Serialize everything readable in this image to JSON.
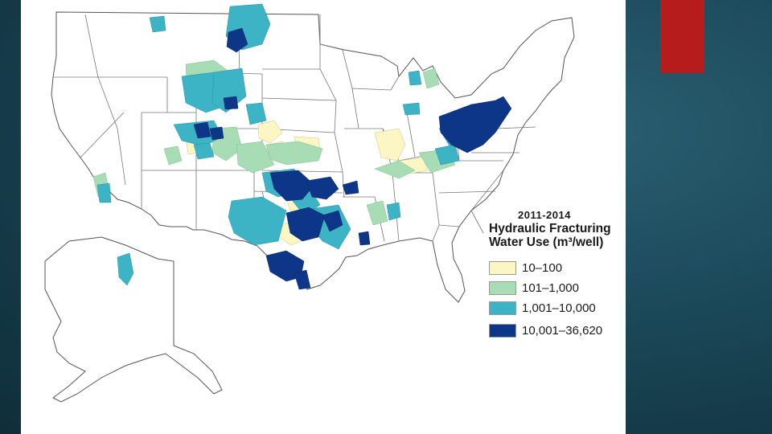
{
  "legend": {
    "year": "2011-2014",
    "title_line1": "Hydraulic Fracturing",
    "title_line2": "Water Use (m³/well)",
    "items": [
      {
        "label": "10–100",
        "color": "#fbf6c4"
      },
      {
        "label": "101–1,000",
        "color": "#a8dcb5"
      },
      {
        "label": "1,001–10,000",
        "color": "#3db4c6"
      },
      {
        "label": "10,001–36,620",
        "color": "#0d3588"
      }
    ]
  },
  "colors": {
    "slide_background": "#1a4655",
    "accent_tab": "#b71c1c",
    "map_background": "#ffffff",
    "boundary_lines": "#555555"
  }
}
